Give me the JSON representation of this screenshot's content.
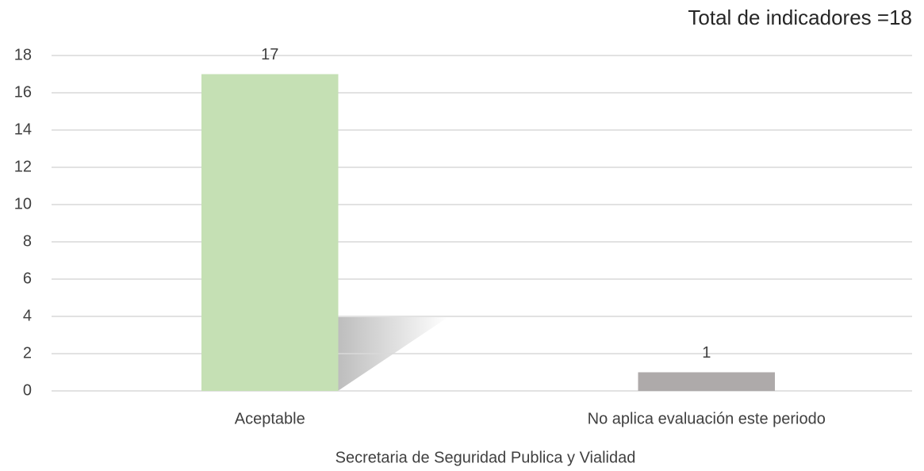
{
  "chart_data": {
    "type": "bar",
    "title": "Total de indicadores =18",
    "categories": [
      "Aceptable",
      "No aplica evaluación este periodo"
    ],
    "values": [
      17,
      1
    ],
    "colors": [
      "#c5e0b4",
      "#aeaaaa"
    ],
    "xlabel": "Secretaria de Seguridad Publica y Vialidad",
    "ylim": [
      0,
      18
    ],
    "yticks": [
      0,
      2,
      4,
      6,
      8,
      10,
      12,
      14,
      16,
      18
    ],
    "grid": true
  }
}
